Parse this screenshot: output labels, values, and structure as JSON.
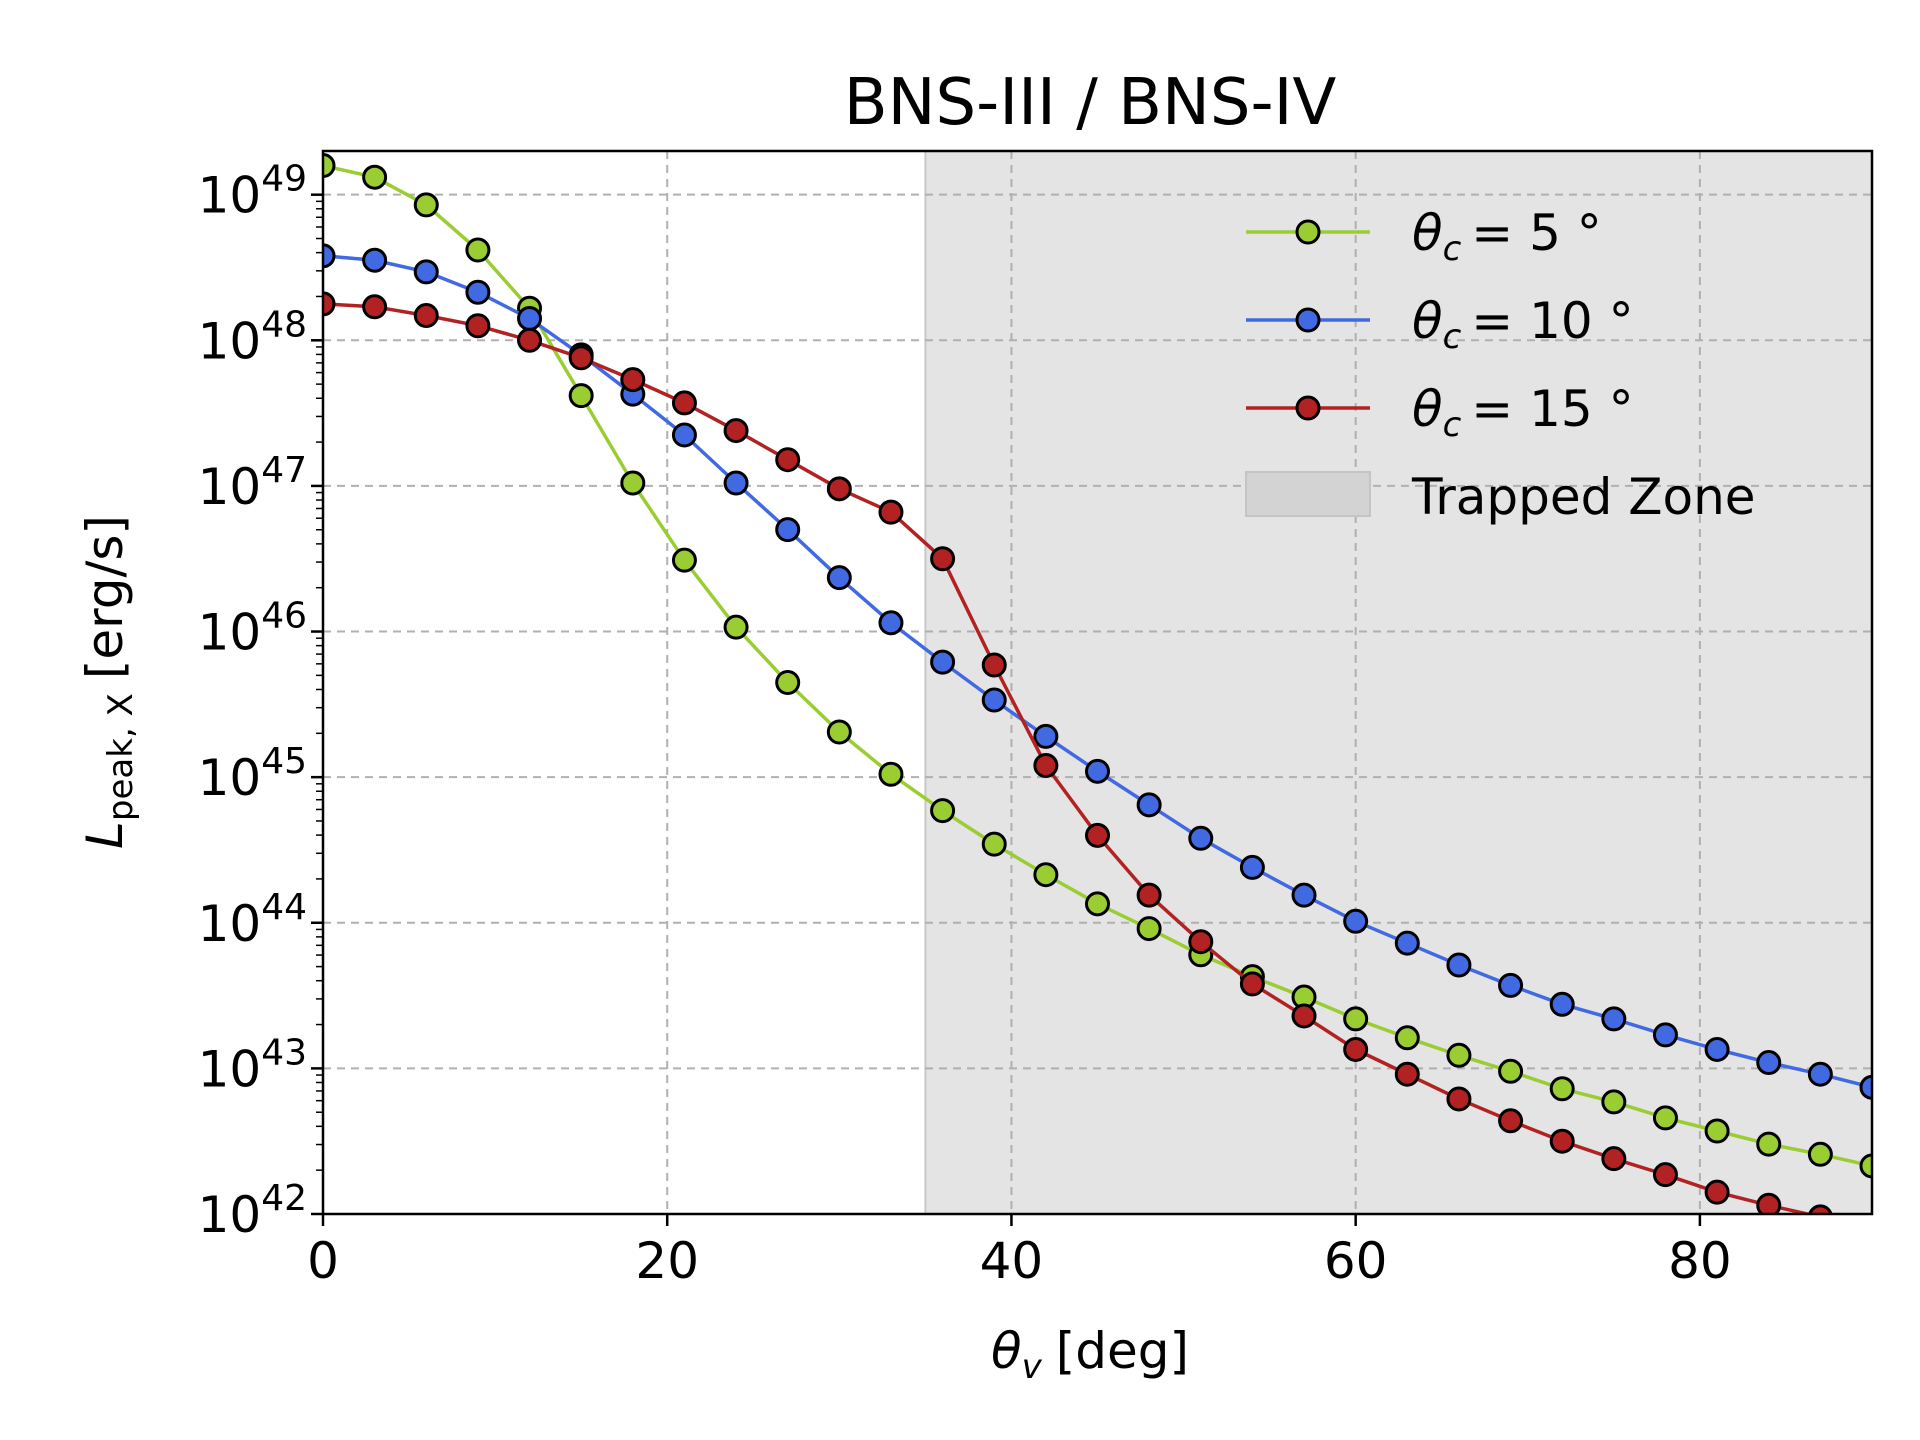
{
  "chart_data": {
    "type": "line",
    "title": "BNS-III / BNS-IV",
    "xlabel_symbol": "θ",
    "xlabel_sub": "v",
    "xlabel_unit": "[deg]",
    "ylabel_symbol": "L",
    "ylabel_sub": "peak, X",
    "ylabel_unit": "[erg/s]",
    "xlim": [
      0,
      90
    ],
    "ylim_log10": [
      42,
      49.3
    ],
    "yscale": "log",
    "grid": true,
    "legend_position": "top-right",
    "x_ticks": [
      {
        "value": 0,
        "label": "0"
      },
      {
        "value": 20,
        "label": "20"
      },
      {
        "value": 40,
        "label": "40"
      },
      {
        "value": 60,
        "label": "60"
      },
      {
        "value": 80,
        "label": "80"
      }
    ],
    "y_ticks": [
      {
        "exp": 42,
        "base": "10",
        "power": "42"
      },
      {
        "exp": 43,
        "base": "10",
        "power": "43"
      },
      {
        "exp": 44,
        "base": "10",
        "power": "44"
      },
      {
        "exp": 45,
        "base": "10",
        "power": "45"
      },
      {
        "exp": 46,
        "base": "10",
        "power": "46"
      },
      {
        "exp": 47,
        "base": "10",
        "power": "47"
      },
      {
        "exp": 48,
        "base": "10",
        "power": "48"
      },
      {
        "exp": 49,
        "base": "10",
        "power": "49"
      }
    ],
    "shaded_region": {
      "x_start": 35,
      "x_end": 90,
      "label": "Trapped Zone",
      "color": "#e4e4e4"
    },
    "x": [
      0,
      3,
      6,
      9,
      12,
      15,
      18,
      21,
      24,
      27,
      30,
      33,
      36,
      39,
      42,
      45,
      48,
      51,
      54,
      57,
      60,
      63,
      66,
      69,
      72,
      75,
      78,
      81,
      84,
      87,
      90
    ],
    "series": [
      {
        "name_symbol": "θ",
        "name_sub": "c",
        "name_value": "= 5 °",
        "color": "#9acd32",
        "log10_values": [
          49.2,
          49.12,
          48.93,
          48.62,
          48.22,
          47.62,
          47.02,
          46.49,
          46.03,
          45.65,
          45.31,
          45.02,
          44.77,
          44.54,
          44.33,
          44.13,
          43.96,
          43.78,
          43.63,
          43.49,
          43.34,
          43.21,
          43.09,
          42.98,
          42.86,
          42.77,
          42.66,
          42.57,
          42.48,
          42.41,
          42.33
        ]
      },
      {
        "name_symbol": "θ",
        "name_sub": "c",
        "name_value": "= 10 °",
        "color": "#4169e1",
        "log10_values": [
          48.58,
          48.55,
          48.47,
          48.33,
          48.15,
          47.9,
          47.63,
          47.35,
          47.02,
          46.7,
          46.37,
          46.06,
          45.79,
          45.53,
          45.28,
          45.04,
          44.81,
          44.58,
          44.38,
          44.19,
          44.01,
          43.86,
          43.71,
          43.57,
          43.44,
          43.34,
          43.23,
          43.13,
          43.04,
          42.96,
          42.87
        ]
      },
      {
        "name_symbol": "θ",
        "name_sub": "c",
        "name_value": "= 15 °",
        "color": "#b22222",
        "log10_values": [
          48.25,
          48.23,
          48.17,
          48.1,
          48.0,
          47.88,
          47.73,
          47.57,
          47.38,
          47.18,
          46.98,
          46.82,
          46.5,
          45.77,
          45.08,
          44.6,
          44.19,
          43.87,
          43.58,
          43.36,
          43.13,
          42.96,
          42.79,
          42.64,
          42.5,
          42.38,
          42.27,
          42.15,
          42.06,
          41.98,
          41.9
        ]
      }
    ]
  }
}
